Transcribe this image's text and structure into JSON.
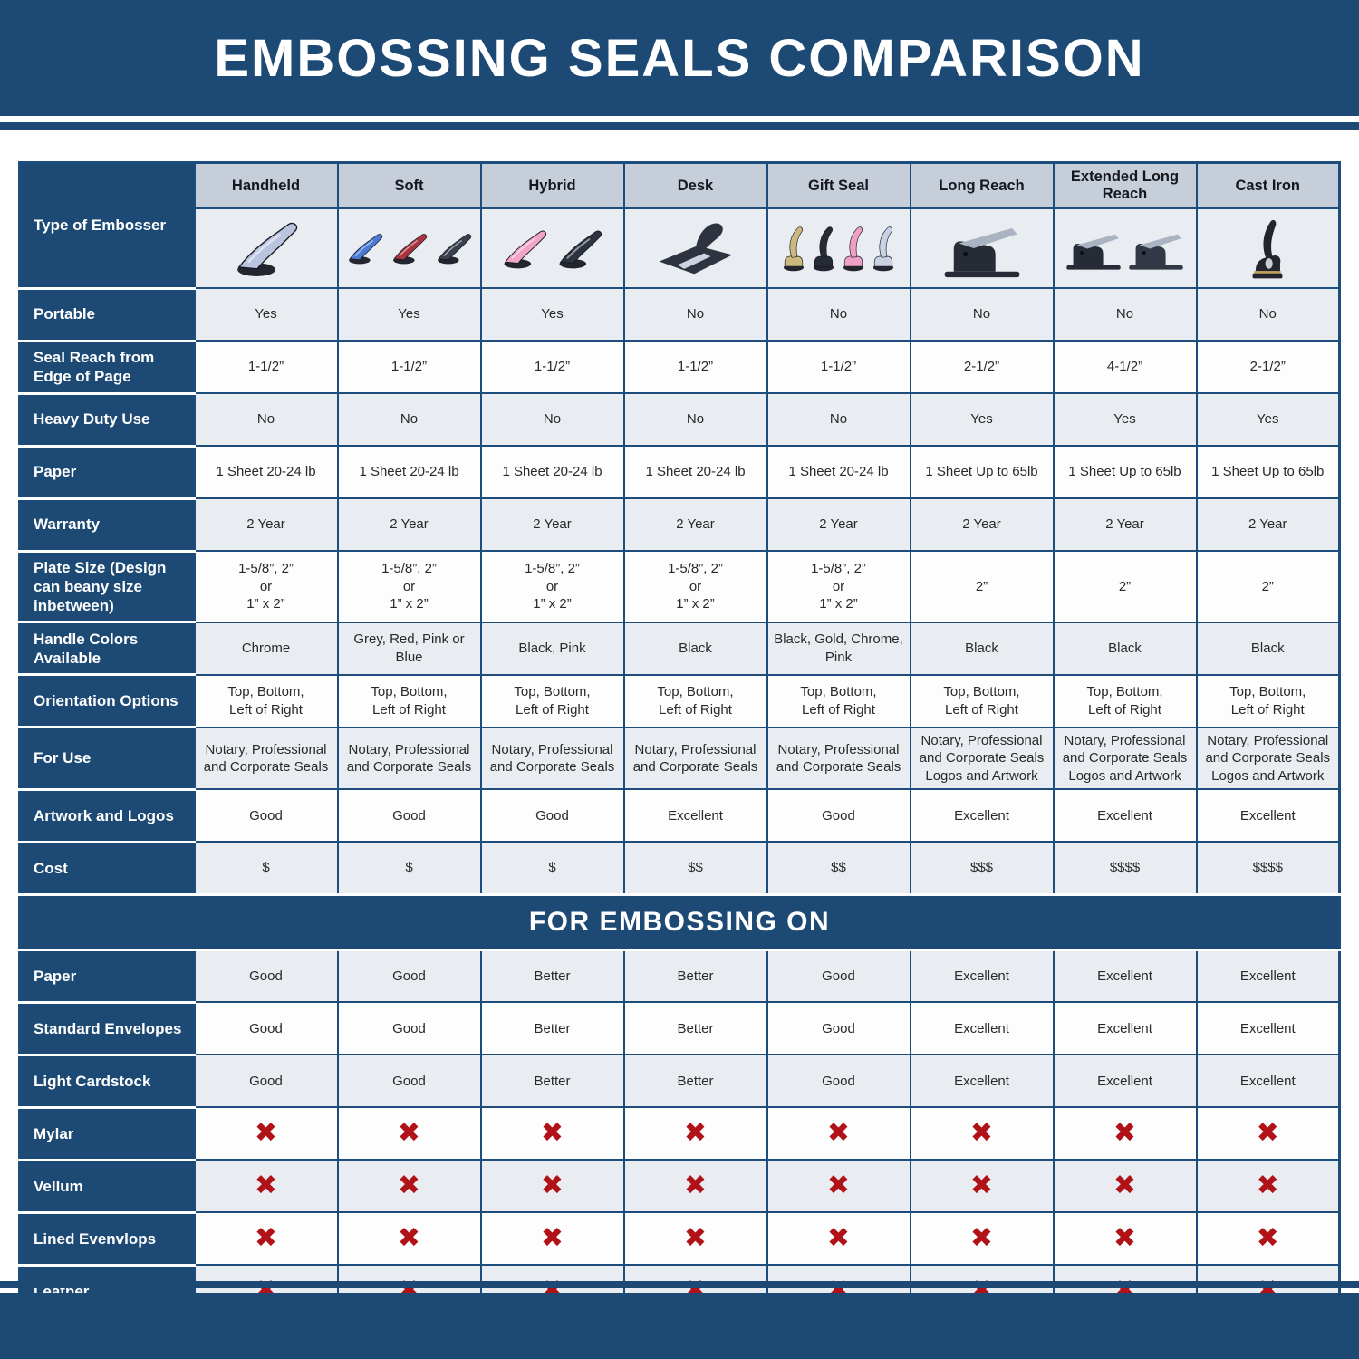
{
  "page": {
    "title": "EMBOSSING SEALS COMPARISON",
    "section2_title": "FOR EMBOSSING ON"
  },
  "colors": {
    "navy": "#1d4a74",
    "header_cell": "#c6ceda",
    "row_gray": "#e9ecf0",
    "row_white": "#fdfdfe",
    "grid_border": "#1d4d7d",
    "red_x": "#b01218"
  },
  "icons": {
    "red_x": "✖"
  },
  "table": {
    "row_header_type": "Type of Embosser",
    "columns": [
      {
        "label": "Handheld",
        "image": {
          "style": "pliers",
          "colors": [
            "#b9c4de"
          ]
        }
      },
      {
        "label": "Soft",
        "image": {
          "style": "pliers",
          "colors": [
            "#4a79d6",
            "#a8323e",
            "#3a404e"
          ]
        }
      },
      {
        "label": "Hybrid",
        "image": {
          "style": "pliers",
          "colors": [
            "#f2a3c8",
            "#2e3340"
          ]
        }
      },
      {
        "label": "Desk",
        "image": {
          "style": "desk",
          "colors": [
            "#2e3340"
          ]
        }
      },
      {
        "label": "Gift Seal",
        "image": {
          "style": "gift",
          "colors": [
            "#cdb87e",
            "#262b36",
            "#f0a0c4",
            "#c9d2e4"
          ]
        }
      },
      {
        "label": "Long Reach",
        "image": {
          "style": "press",
          "colors": [
            "#262b36"
          ]
        }
      },
      {
        "label": "Extended Long Reach",
        "image": {
          "style": "press",
          "colors": [
            "#262b36",
            "#323846"
          ]
        }
      },
      {
        "label": "Cast Iron",
        "image": {
          "style": "cast",
          "colors": [
            "#22252e"
          ]
        }
      }
    ],
    "spec_rows": [
      {
        "label": "Portable",
        "values": [
          "Yes",
          "Yes",
          "Yes",
          "No",
          "No",
          "No",
          "No",
          "No"
        ]
      },
      {
        "label": "Seal Reach from Edge of Page",
        "values": [
          "1-1/2”",
          "1-1/2”",
          "1-1/2”",
          "1-1/2”",
          "1-1/2”",
          "2-1/2”",
          "4-1/2”",
          "2-1/2”"
        ]
      },
      {
        "label": "Heavy Duty Use",
        "values": [
          "No",
          "No",
          "No",
          "No",
          "No",
          "Yes",
          "Yes",
          "Yes"
        ]
      },
      {
        "label": "Paper",
        "values": [
          "1 Sheet 20-24 lb",
          "1 Sheet 20-24 lb",
          "1 Sheet 20-24 lb",
          "1 Sheet 20-24 lb",
          "1 Sheet 20-24 lb",
          "1 Sheet Up to 65lb",
          "1 Sheet Up to 65lb",
          "1 Sheet Up to 65lb"
        ]
      },
      {
        "label": "Warranty",
        "values": [
          "2 Year",
          "2 Year",
          "2 Year",
          "2 Year",
          "2 Year",
          "2 Year",
          "2 Year",
          "2 Year"
        ]
      },
      {
        "label": "Plate Size (Design can beany size inbetween)",
        "values": [
          "1-5/8”, 2”\nor\n1” x 2”",
          "1-5/8”, 2”\nor\n1” x 2”",
          "1-5/8”, 2”\nor\n1” x 2”",
          "1-5/8”, 2”\nor\n1” x 2”",
          "1-5/8”, 2”\nor\n1” x 2”",
          "2”",
          "2”",
          "2”"
        ]
      },
      {
        "label": "Handle Colors Available",
        "values": [
          "Chrome",
          "Grey, Red, Pink or Blue",
          "Black, Pink",
          "Black",
          "Black, Gold, Chrome, Pink",
          "Black",
          "Black",
          "Black"
        ]
      },
      {
        "label": "Orientation Options",
        "values": [
          "Top, Bottom,\nLeft of Right",
          "Top, Bottom,\nLeft of Right",
          "Top, Bottom,\nLeft of Right",
          "Top, Bottom,\nLeft of Right",
          "Top, Bottom,\nLeft of Right",
          "Top, Bottom,\nLeft of Right",
          "Top, Bottom,\nLeft of Right",
          "Top, Bottom,\nLeft of Right"
        ]
      },
      {
        "label": "For Use",
        "values": [
          "Notary, Professional\nand Corporate Seals",
          "Notary, Professional\nand Corporate Seals",
          "Notary, Professional\nand Corporate Seals",
          "Notary, Professional\nand Corporate Seals",
          "Notary, Professional\nand Corporate Seals",
          "Notary, Professional\nand Corporate Seals\nLogos and Artwork",
          "Notary, Professional\nand Corporate Seals\nLogos and Artwork",
          "Notary, Professional\nand Corporate Seals\nLogos and Artwork"
        ]
      },
      {
        "label": "Artwork and Logos",
        "values": [
          "Good",
          "Good",
          "Good",
          "Excellent",
          "Good",
          "Excellent",
          "Excellent",
          "Excellent"
        ]
      },
      {
        "label": "Cost",
        "values": [
          "$",
          "$",
          "$",
          "$$",
          "$$",
          "$$$",
          "$$$$",
          "$$$$"
        ]
      }
    ],
    "embossing_rows": [
      {
        "label": "Paper",
        "values": [
          "Good",
          "Good",
          "Better",
          "Better",
          "Good",
          "Excellent",
          "Excellent",
          "Excellent"
        ]
      },
      {
        "label": "Standard Envelopes",
        "values": [
          "Good",
          "Good",
          "Better",
          "Better",
          "Good",
          "Excellent",
          "Excellent",
          "Excellent"
        ]
      },
      {
        "label": "Light Cardstock",
        "values": [
          "Good",
          "Good",
          "Better",
          "Better",
          "Good",
          "Excellent",
          "Excellent",
          "Excellent"
        ]
      },
      {
        "label": "Mylar",
        "type": "icons"
      },
      {
        "label": "Vellum",
        "type": "icons"
      },
      {
        "label": "Lined Evenvlops",
        "type": "icons"
      },
      {
        "label": "Leather",
        "type": "icons"
      }
    ]
  }
}
